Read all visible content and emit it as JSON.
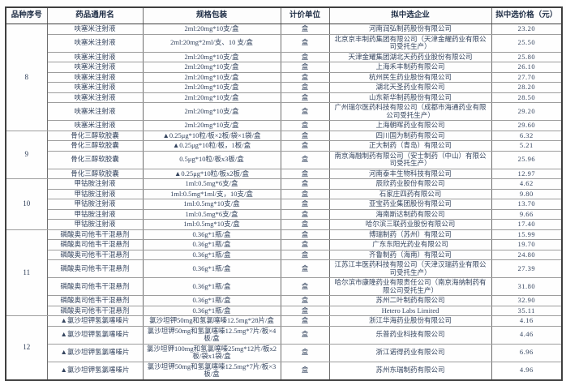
{
  "table": {
    "headers": {
      "variety_no": "品种序号",
      "drug_name": "药品通用名",
      "spec_pack": "规格包装",
      "pricing_unit": "计价单位",
      "selected_company": "拟中选企业",
      "selected_price": "拟中选价格（元）"
    },
    "groups": [
      {
        "no": "8",
        "rows": [
          {
            "name": "呋塞米注射液",
            "spec": "2ml:20mg*10支/盒",
            "unit": "盒",
            "company": "河南润弘制药股份有限公司",
            "price": "23.20"
          },
          {
            "name": "呋塞米注射液",
            "spec": "2ml:20mg*2ml/支、10 支/盒",
            "unit": "盒",
            "company": "北京京丰制药集团有限公司（天津金耀药业有限公司受托生产）",
            "price": "25.50"
          },
          {
            "name": "呋塞米注射液",
            "spec": "2ml:20mg*10支/盒",
            "unit": "盒",
            "company": "天津金耀集团湖北天药药业股份有限公司",
            "price": "25.80"
          },
          {
            "name": "呋塞米注射液",
            "spec": "2ml:20mg*10支/盒",
            "unit": "盒",
            "company": "上海禾丰制药有限公司",
            "price": "26.10"
          },
          {
            "name": "呋塞米注射液",
            "spec": "2ml:20mg*10支/盒",
            "unit": "盒",
            "company": "杭州民生药业股份有限公司",
            "price": "27.70"
          },
          {
            "name": "呋塞米注射液",
            "spec": "2ml:20mg*10支/盒",
            "unit": "盒",
            "company": "湖北天圣药业有限公司",
            "price": "28.20"
          },
          {
            "name": "呋塞米注射液",
            "spec": "2ml:20mg*10支/盒",
            "unit": "盒",
            "company": "山东新华制药股份有限公司",
            "price": "28.50"
          },
          {
            "name": "呋塞米注射液",
            "spec": "2ml:20mg*10支/盒",
            "unit": "盒",
            "company": "广州瑞尔医药科技有限公司（成都市海通药业有限公司受托生产）",
            "price": "29.20"
          },
          {
            "name": "呋塞米注射液",
            "spec": "2ml:20mg*10支/盒",
            "unit": "盒",
            "company": "上海朝晖药业有限公司",
            "price": "29.60"
          }
        ]
      },
      {
        "no": "9",
        "rows": [
          {
            "name": "骨化三醇软胶囊",
            "spec": "▲0.25μg*10粒/板×2板/袋×1袋/盒",
            "unit": "盒",
            "company": "四川国为制药有限公司",
            "price": "6.32"
          },
          {
            "name": "骨化三醇软胶囊",
            "spec": "▲0.25μg*10粒/板，1板/盒",
            "unit": "盒",
            "company": "正大制药（青岛）有限公司",
            "price": "5.21"
          },
          {
            "name": "骨化三醇软胶囊",
            "spec": "0.5μg*10粒/板x3板/盒",
            "unit": "盒",
            "company": "南京海融制药有限公司（安士制药（中山）有限公司受托生产）",
            "price": "25.96"
          },
          {
            "name": "骨化三醇软胶囊",
            "spec": "▲0.25μg*10粒/板x2板/盒",
            "unit": "盒",
            "company": "河南泰丰生物科技有限公司",
            "price": "12.97"
          }
        ]
      },
      {
        "no": "10",
        "rows": [
          {
            "name": "甲钴胺注射液",
            "spec": "1ml:0.5mg*6支/盒",
            "unit": "盒",
            "company": "辰欣药业股份有限公司",
            "price": "4.62"
          },
          {
            "name": "甲钴胺注射液",
            "spec": "1ml:0.5mg*1ml/支，10支/盒",
            "unit": "盒",
            "company": "石家庄四药有限公司",
            "price": "9.80"
          },
          {
            "name": "甲钴胺注射液",
            "spec": "1ml:0.5mg*10支/盒",
            "unit": "盒",
            "company": "亚宝药业集团股份有限公司",
            "price": "13.70"
          },
          {
            "name": "甲钴胺注射液",
            "spec": "1ml:0.5mg*6支/盒",
            "unit": "盒",
            "company": "海南斯达制药有限公司",
            "price": "9.66"
          },
          {
            "name": "甲钴胺注射液",
            "spec": "1ml:0.5mg*10支/盒",
            "unit": "盒",
            "company": "哈尔滨三联药业股份有限公司",
            "price": "17.40"
          }
        ]
      },
      {
        "no": "11",
        "rows": [
          {
            "name": "磷酸奥司他韦干混悬剂",
            "spec": "0.36g*1瓶/盒",
            "unit": "盒",
            "company": "博瑞制药（苏州）有限公司",
            "price": "15.99"
          },
          {
            "name": "磷酸奥司他韦干混悬剂",
            "spec": "0.36g*1瓶/盒",
            "unit": "盒",
            "company": "广东东阳光药业有限公司",
            "price": "19.70"
          },
          {
            "name": "磷酸奥司他韦干混悬剂",
            "spec": "0.36g*1瓶/盒",
            "unit": "盒",
            "company": "齐鲁制药（海南）有限公司",
            "price": "24.80"
          },
          {
            "name": "磷酸奥司他韦干混悬剂",
            "spec": "0.36g*1瓶/盒",
            "unit": "盒",
            "company": "江苏江丰医药科技有限公司（天津汉瑞药业有限公司受托生产）",
            "price": "27.39"
          },
          {
            "name": "磷酸奥司他韦干混悬剂",
            "spec": "0.36g*1瓶/盒",
            "unit": "盒",
            "company": "哈尔滨市康隆药业有限责任公司（南京海纳制药有限公司受托生产）",
            "price": "31.80"
          },
          {
            "name": "磷酸奥司他韦干混悬剂",
            "spec": "0.36g*1瓶/盒",
            "unit": "盒",
            "company": "苏州二叶制药有限公司",
            "price": "32.90"
          },
          {
            "name": "磷酸奥司他韦干混悬剂",
            "spec": "0.36g*1瓶/盒",
            "unit": "盒",
            "company": "Hetero Labs Limited",
            "price": "35.11"
          }
        ]
      },
      {
        "no": "12",
        "rows": [
          {
            "name": "▲氯沙坦钾氢氯噻嗪片",
            "spec": "氯沙坦钾50mg和氢氯噻嗪12.5mg*28片/盒",
            "unit": "盒",
            "company": "浙江华海药业股份有限公司",
            "price": "4.16"
          },
          {
            "name": "▲氯沙坦钾氢氯噻嗪片",
            "spec": "氯沙坦钾50mg和氢氯噻嗪12.5mg*7片/板×4板/盒",
            "unit": "盒",
            "company": "乐普药业科技有限公司",
            "price": "4.46"
          },
          {
            "name": "▲氯沙坦钾氢氯噻嗪片",
            "spec": "氯沙坦钾100mg和氢氯噻嗪25mg*12片/板x2板/袋x1袋/盒",
            "unit": "盒",
            "company": "浙江诺得药业有限公司",
            "price": "6.96"
          },
          {
            "name": "▲氯沙坦钾氢氯噻嗪片",
            "spec": "氯沙坦钾50mg和氢氯噻嗪12.5mg*7片/板×3板/盒",
            "unit": "盒",
            "company": "苏州东瑞制药有限公司",
            "price": "4.96"
          }
        ]
      }
    ]
  },
  "colors": {
    "body_text": "#35455f",
    "header_text": "#1f2e46",
    "outer_border": "#3f3f3f",
    "inner_border": "#9d9d9d",
    "background": "#ffffff"
  }
}
